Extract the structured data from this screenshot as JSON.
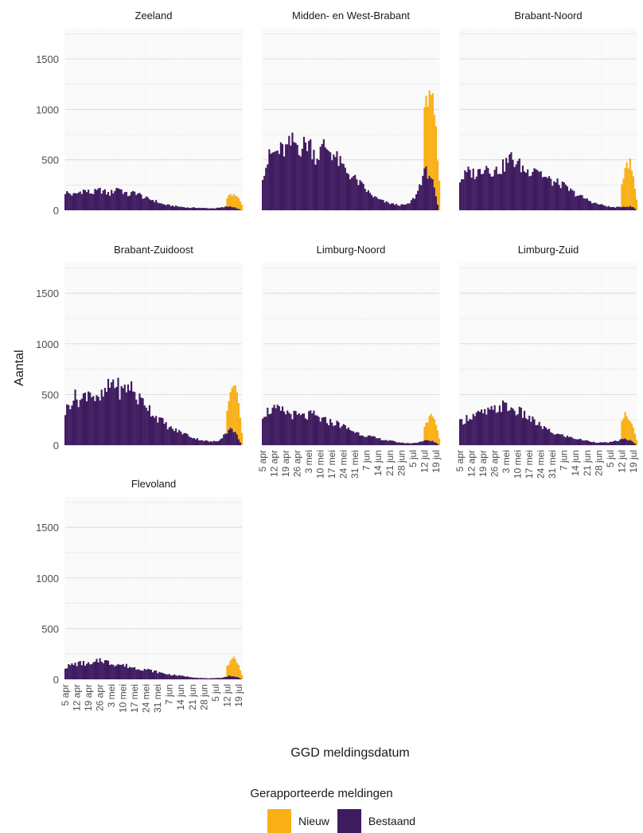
{
  "chart_data": {
    "type": "bar",
    "stacked": true,
    "facets": true,
    "xlabel": "GGD meldingsdatum",
    "ylabel": "Aantal",
    "ylim": [
      0,
      1800
    ],
    "y_ticks": [
      0,
      500,
      1000,
      1500
    ],
    "x_tick_labels": [
      "5 apr",
      "12 apr",
      "19 apr",
      "26 apr",
      "3 mei",
      "10 mei",
      "17 mei",
      "24 mei",
      "31 mei",
      "7 jun",
      "14 jun",
      "21 jun",
      "28 jun",
      "5 jul",
      "12 jul",
      "19 jul"
    ],
    "grid": true,
    "legend": {
      "title": "Gerapporteerde meldingen",
      "position": "bottom",
      "entries": [
        {
          "name": "Nieuw",
          "color": "#F9B016"
        },
        {
          "name": "Bestaand",
          "color": "#3E1A5F"
        }
      ]
    },
    "x_start": "2021-04-05",
    "x_end": "2021-07-21",
    "series": [
      {
        "name": "Zeeland",
        "bestaand_anchors": [
          180,
          150,
          200,
          170,
          200,
          160,
          230,
          150,
          180,
          120,
          100,
          60,
          45,
          35,
          25,
          25,
          20,
          20,
          30,
          65,
          60
        ],
        "nieuw_anchors": [
          90,
          120,
          130,
          105,
          60
        ]
      },
      {
        "name": "Midden- en West-Brabant",
        "bestaand_anchors": [
          360,
          550,
          580,
          600,
          680,
          620,
          680,
          520,
          640,
          580,
          470,
          380,
          310,
          240,
          160,
          110,
          80,
          60,
          50,
          60,
          150,
          380,
          700,
          530
        ],
        "nieuw_anchors": [
          600,
          780,
          900,
          700,
          300
        ]
      },
      {
        "name": "Brabant-Noord",
        "bestaand_anchors": [
          300,
          380,
          360,
          450,
          380,
          420,
          520,
          450,
          380,
          440,
          330,
          280,
          260,
          200,
          150,
          110,
          70,
          50,
          30,
          30,
          70,
          190
        ],
        "nieuw_anchors": [
          210,
          380,
          450,
          300,
          100
        ]
      },
      {
        "name": "Brabant-Zuidoost",
        "bestaand_anchors": [
          330,
          480,
          440,
          560,
          420,
          520,
          640,
          520,
          600,
          460,
          420,
          300,
          240,
          170,
          140,
          110,
          70,
          50,
          35,
          40,
          120,
          300,
          340
        ],
        "nieuw_anchors": [
          240,
          420,
          530,
          380,
          120
        ]
      },
      {
        "name": "Limburg-Noord",
        "bestaand_anchors": [
          310,
          350,
          340,
          320,
          290,
          280,
          300,
          250,
          230,
          210,
          170,
          130,
          100,
          80,
          60,
          45,
          30,
          20,
          20,
          40,
          80,
          160
        ],
        "nieuw_anchors": [
          130,
          200,
          260,
          190,
          60
        ]
      },
      {
        "name": "Limburg-Zuid",
        "bestaand_anchors": [
          220,
          280,
          300,
          320,
          340,
          390,
          360,
          330,
          280,
          220,
          170,
          120,
          100,
          80,
          60,
          45,
          30,
          25,
          30,
          50,
          110,
          150
        ],
        "nieuw_anchors": [
          170,
          270,
          220,
          160,
          50
        ]
      },
      {
        "name": "Flevoland",
        "bestaand_anchors": [
          120,
          150,
          160,
          140,
          200,
          160,
          150,
          130,
          110,
          100,
          80,
          60,
          45,
          35,
          25,
          15,
          10,
          10,
          20,
          60,
          100
        ],
        "nieuw_anchors": [
          100,
          150,
          190,
          130,
          40
        ]
      }
    ]
  }
}
